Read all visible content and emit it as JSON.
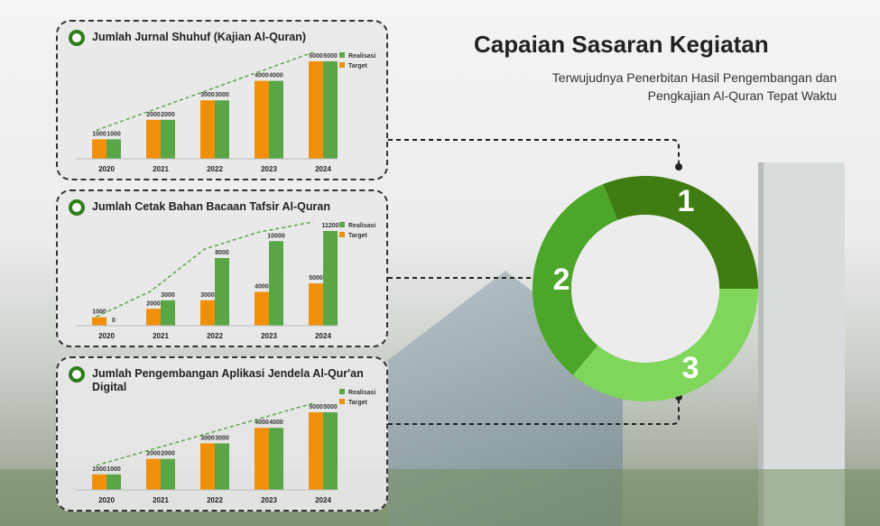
{
  "header": {
    "title": "Capaian Sasaran Kegiatan",
    "subtitle": [
      "Terwujudnya Penerbitan Hasil Pengembangan dan",
      "Pengkajian Al-Quran Tepat Waktu"
    ]
  },
  "ring_labels": [
    1,
    2,
    3
  ],
  "chart_data": [
    {
      "type": "bar",
      "title": "Jumlah Jurnal Shuhuf (Kajian Al-Quran)",
      "categories": [
        "2020",
        "2021",
        "2022",
        "2023",
        "2024"
      ],
      "series": [
        {
          "name": "Realisasi",
          "color": "#5aa646",
          "values": [
            1000,
            2000,
            3000,
            4000,
            5000
          ]
        },
        {
          "name": "Target",
          "color": "#f0900a",
          "values": [
            1000,
            2000,
            3000,
            4000,
            5000
          ]
        }
      ]
    },
    {
      "type": "bar",
      "title": "Jumlah Cetak Bahan Bacaan Tafsir Al-Quran",
      "categories": [
        "2020",
        "2021",
        "2022",
        "2023",
        "2024"
      ],
      "series": [
        {
          "name": "Realisasi",
          "color": "#5aa646",
          "values": [
            0,
            3000,
            8000,
            10000,
            11200
          ]
        },
        {
          "name": "Target",
          "color": "#f0900a",
          "values": [
            1000,
            2000,
            3000,
            4000,
            5000
          ]
        }
      ]
    },
    {
      "type": "bar",
      "title": "Jumlah Pengembangan Aplikasi Jendela Al-Qur'an Digital",
      "categories": [
        "2020",
        "2021",
        "2022",
        "2023",
        "2024"
      ],
      "series": [
        {
          "name": "Realisasi",
          "color": "#5aa646",
          "values": [
            1000,
            2000,
            3000,
            4000,
            5000
          ]
        },
        {
          "name": "Target",
          "color": "#f0900a",
          "values": [
            1000,
            2000,
            3000,
            4000,
            5000
          ]
        }
      ]
    }
  ]
}
